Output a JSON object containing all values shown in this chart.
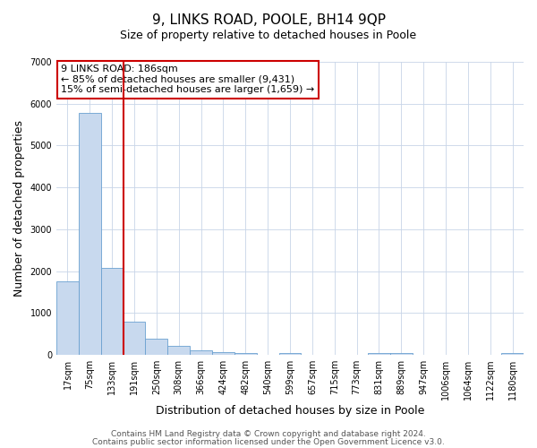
{
  "title": "9, LINKS ROAD, POOLE, BH14 9QP",
  "subtitle": "Size of property relative to detached houses in Poole",
  "xlabel": "Distribution of detached houses by size in Poole",
  "ylabel": "Number of detached properties",
  "bar_color": "#c8d9ee",
  "bar_edge_color": "#6aa0d0",
  "bin_labels": [
    "17sqm",
    "75sqm",
    "133sqm",
    "191sqm",
    "250sqm",
    "308sqm",
    "366sqm",
    "424sqm",
    "482sqm",
    "540sqm",
    "599sqm",
    "657sqm",
    "715sqm",
    "773sqm",
    "831sqm",
    "889sqm",
    "947sqm",
    "1006sqm",
    "1064sqm",
    "1122sqm",
    "1180sqm"
  ],
  "bar_values": [
    1750,
    5780,
    2080,
    800,
    380,
    220,
    110,
    65,
    55,
    0,
    40,
    0,
    0,
    0,
    50,
    45,
    0,
    0,
    0,
    0,
    55
  ],
  "vline_x_index": 3,
  "vline_color": "#cc0000",
  "ylim": [
    0,
    7000
  ],
  "yticks": [
    0,
    1000,
    2000,
    3000,
    4000,
    5000,
    6000,
    7000
  ],
  "annotation_line1": "9 LINKS ROAD: 186sqm",
  "annotation_line2": "← 85% of detached houses are smaller (9,431)",
  "annotation_line3": "15% of semi-detached houses are larger (1,659) →",
  "footer1": "Contains HM Land Registry data © Crown copyright and database right 2024.",
  "footer2": "Contains public sector information licensed under the Open Government Licence v3.0.",
  "background_color": "#ffffff",
  "grid_color": "#c8d5e8",
  "annotation_box_color": "#ffffff",
  "annotation_box_edge_color": "#cc0000",
  "title_fontsize": 11,
  "subtitle_fontsize": 9,
  "axis_label_fontsize": 9,
  "tick_fontsize": 7,
  "annotation_fontsize": 8,
  "footer_fontsize": 6.5
}
